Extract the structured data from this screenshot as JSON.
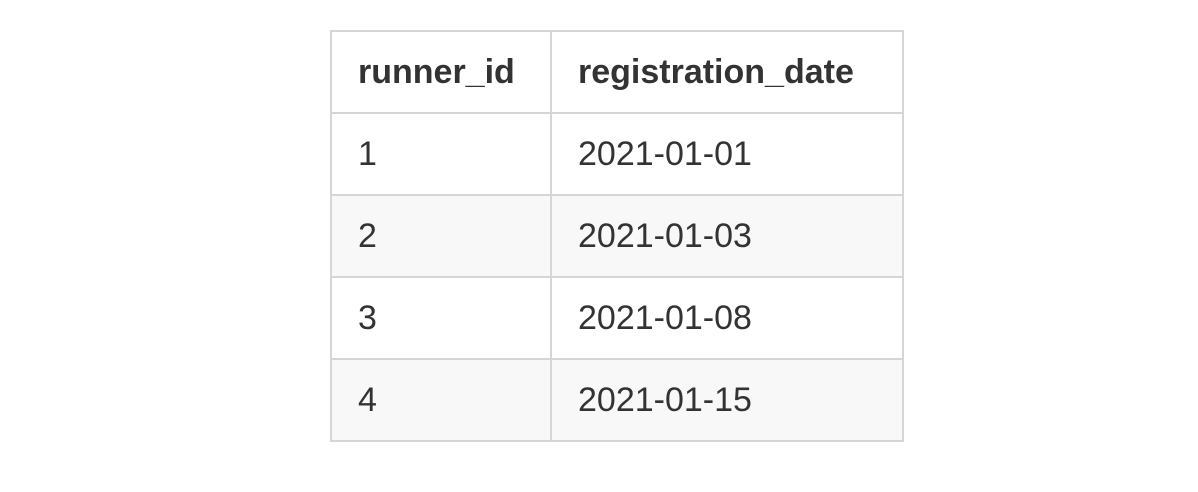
{
  "table": {
    "headers": [
      "runner_id",
      "registration_date"
    ],
    "rows": [
      [
        "1",
        "2021-01-01"
      ],
      [
        "2",
        "2021-01-03"
      ],
      [
        "3",
        "2021-01-08"
      ],
      [
        "4",
        "2021-01-15"
      ]
    ]
  },
  "colors": {
    "border": "#d6d6d6",
    "text": "#333333",
    "row_stripe": "#f8f8f8",
    "background": "#ffffff"
  }
}
